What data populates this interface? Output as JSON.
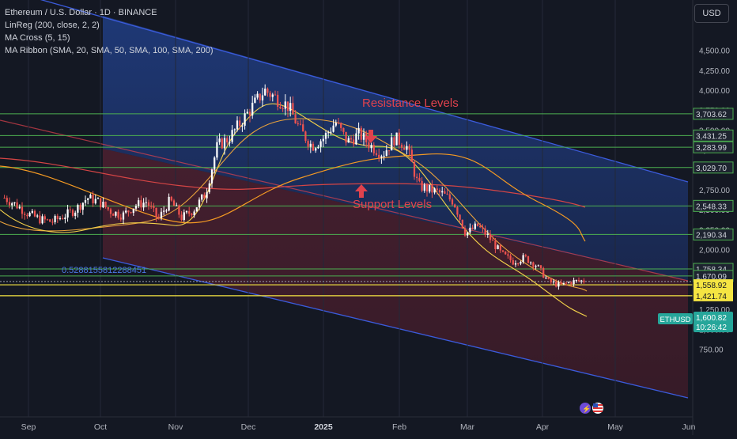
{
  "header": {
    "symbol_title": "Ethereum / U.S. Dollar · 1D · BINANCE",
    "indicators": [
      "LinReg (200, close, 2, 2)",
      "MA Cross (5, 15)",
      "MA Ribbon (SMA, 20, SMA, 50, SMA, 100, SMA, 200)"
    ],
    "currency_button": "USD"
  },
  "annotations": {
    "resistance": "Resistance Levels",
    "support": "Support Levels",
    "ratio": "0.5288155812288451"
  },
  "icons": {
    "logo_icon": "tradingview-logo",
    "flag_icon": "us-flag"
  },
  "colors": {
    "background": "#141823",
    "upper_channel_fill": "#1c2c5c",
    "lower_channel_fill": "#3e1e2a",
    "channel_line": "#3b5bdb",
    "green_level": "#4caf50",
    "yellow_level": "#f5e542",
    "annotation": "#e0424d",
    "candle_up": "#ffffff",
    "candle_down": "#ef5350",
    "price_badge": "#26a69a"
  },
  "chart_data": {
    "type": "candlestick",
    "y_range": [
      700,
      4800
    ],
    "y_ticks": [
      "4,500.00",
      "4,250.00",
      "4,000.00",
      "3,750.00",
      "3,500.00",
      "3,250.00",
      "2,750.00",
      "2,500.00",
      "2,250.00",
      "2,000.00",
      "1,750.00",
      "1,500.00",
      "1,250.00",
      "1,000.00",
      "750.00"
    ],
    "y_tick_values": [
      4500,
      4250,
      4000,
      3750,
      3500,
      3250,
      2750,
      2500,
      2250,
      2000,
      1750,
      1500,
      1250,
      1000,
      750
    ],
    "x_labels": [
      "Sep",
      "Oct",
      "Nov",
      "Dec",
      "2025",
      "Feb",
      "Mar",
      "Apr",
      "May",
      "Jun"
    ],
    "green_levels": [
      {
        "label": "3,703.62",
        "value": 3703.62
      },
      {
        "label": "3,431.25",
        "value": 3431.25
      },
      {
        "label": "3,283.99",
        "value": 3283.99
      },
      {
        "label": "3,029.70",
        "value": 3029.7
      },
      {
        "label": "2,548.33",
        "value": 2548.33
      },
      {
        "label": "2,190.34",
        "value": 2190.34
      },
      {
        "label": "1,758.34",
        "value": 1758.34
      },
      {
        "label": "1,670.09",
        "value": 1670.09
      }
    ],
    "yellow_levels": [
      {
        "label": "1,558.92",
        "value": 1558.92
      },
      {
        "label": "1,421.74",
        "value": 1421.74
      }
    ],
    "current_price": {
      "symbol": "ETHUSD",
      "value_label": "1,600.82",
      "value": 1600.82,
      "countdown": "10:26:42"
    },
    "series": [
      {
        "name": "price",
        "values": [
          2650,
          2560,
          2450,
          2380,
          2350,
          2420,
          2500,
          2650,
          2600,
          2480,
          2430,
          2550,
          2600,
          2380,
          2620,
          2400,
          2500,
          2700,
          3300,
          3400,
          3600,
          3800,
          4000,
          3900,
          3800,
          3500,
          3300,
          3400,
          3600,
          3350,
          3450,
          3300,
          3200,
          3400,
          3300,
          2800,
          2750,
          2700,
          2600,
          2200,
          2300,
          2150,
          1950,
          1850,
          1900,
          1800,
          1600,
          1550,
          1600,
          1610
        ]
      }
    ]
  }
}
